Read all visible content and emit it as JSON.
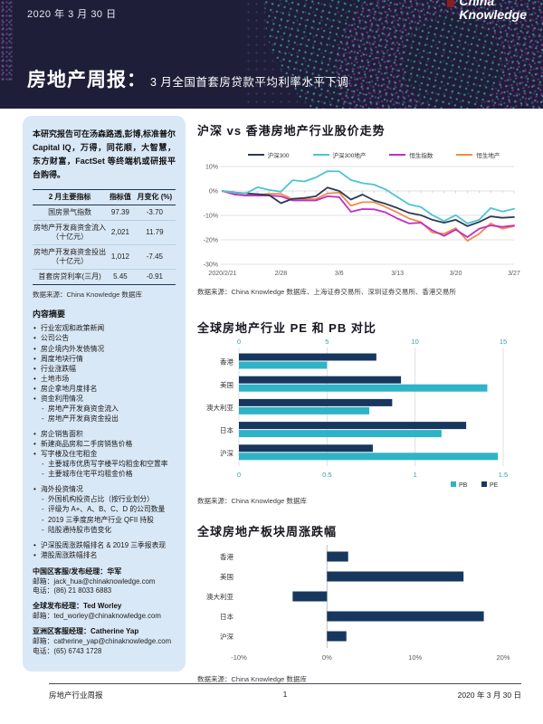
{
  "header": {
    "date": "2020 年 3 月 30 日",
    "logo_line1": "China",
    "logo_line2": "Knowledge",
    "title_bold": "房地产周报：",
    "title_rest": "3 月全国首套房贷款平均利率水平下调"
  },
  "sidebar": {
    "intro": "本研究报告可在汤森路透,彭博,标准普尔 Capital IQ，万得，同花顺，大智慧，东方财富，FactSet 等终端机或研报平台购得。",
    "table": {
      "headers": [
        "2 月主要指标",
        "指标值",
        "月变化 (%)"
      ],
      "rows": [
        [
          "国房景气指数",
          "97.39",
          "-3.70"
        ],
        [
          "房地产开发商资金流入（十亿元）",
          "2,021",
          "11.79"
        ],
        [
          "房地产开发商资金投出（十亿元）",
          "1,012",
          "-7.45"
        ],
        [
          "首套房贷利率(三月)",
          "5.45",
          "-0.91"
        ]
      ],
      "source": "数据来源：China Knowledge 数据库"
    },
    "toc_title": "内容摘要",
    "toc": [
      {
        "text": "行业宏观和政策新闻"
      },
      {
        "text": "公司公告"
      },
      {
        "text": "房企境内外发债情况"
      },
      {
        "text": "周度地块行情"
      },
      {
        "text": "行业涨跌幅"
      },
      {
        "text": "土地市场"
      },
      {
        "text": "房企拿地月度排名"
      },
      {
        "text": "资金利用情况",
        "sub": [
          "房地产开发商资金流入",
          "房地产开发商资金投出"
        ]
      },
      {
        "text": "房企销售面积",
        "gap": true
      },
      {
        "text": "新建商品房和二手房销售价格"
      },
      {
        "text": "写字楼及住宅租金",
        "sub": [
          "主要城市优质写字楼平均租金和空置率",
          "主要城市住宅平均租金价格"
        ]
      },
      {
        "text": "海外投资情况",
        "gap": true,
        "sub": [
          "外国机构投资占比（按行业划分）",
          "评级为 A+、A、B、C、D 的公司数量",
          "2019 三季度房地产行业 QFII 持股",
          "陆股通持股市值变化"
        ]
      },
      {
        "text": "沪深股周涨跌幅排名 & 2019 三季报表现",
        "gap": true
      },
      {
        "text": "港股周涨跌幅排名"
      }
    ],
    "contacts": [
      {
        "title": "中国区客服/发布经理：华军",
        "lines": [
          "邮箱：jack_hua@chinaknowledge.com",
          "电话：(86) 21 8033 6883"
        ]
      },
      {
        "title": "全球发布经理：Ted Worley",
        "lines": [
          "邮箱：ted_worley@chinaknowledge.com"
        ]
      },
      {
        "title": "亚洲区客服经理：Catherine Yap",
        "lines": [
          "邮箱：catherine_yap@chinaknowledge.com",
          "电话：(65) 6743 1728"
        ]
      }
    ]
  },
  "chart_data": [
    {
      "type": "line",
      "title": "沪深 vs 香港房地产行业股价走势",
      "source": "数据来源：China Knowledge 数据库、上海证券交易所、深圳证券交易所、香港交易所",
      "n_points": 26,
      "ylim": [
        -30,
        10
      ],
      "y_ticks": [
        "10%",
        "0%",
        "-10%",
        "-20%",
        "-30%"
      ],
      "y_tick_values": [
        10,
        0,
        -10,
        -20,
        -30
      ],
      "x_tick_labels": [
        "2020/2/21",
        "2/28",
        "3/6",
        "3/13",
        "3/20",
        "3/27"
      ],
      "x_tick_positions": [
        0,
        5,
        10,
        15,
        20,
        25
      ],
      "grid": true,
      "legend_position": "top",
      "series": [
        {
          "name": "沪深300",
          "color": "#2d3a55",
          "values": [
            0,
            -0.6,
            -1.0,
            -1.3,
            -1.7,
            -5.0,
            -3.2,
            -2.9,
            -2.2,
            1.4,
            0.0,
            -3.5,
            -1.5,
            -3.9,
            -5.3,
            -7.0,
            -9.0,
            -9.9,
            -11.8,
            -13.0,
            -11.8,
            -14.4,
            -12.7,
            -10.4,
            -11.0,
            -10.7
          ]
        },
        {
          "name": "沪深300地产",
          "color": "#4cc5d4",
          "values": [
            0,
            -0.7,
            -1.0,
            1.5,
            0.4,
            -0.3,
            4.4,
            3.9,
            5.5,
            8.1,
            8.0,
            4.5,
            3.2,
            2.6,
            0.6,
            -2.5,
            -5.5,
            -6.6,
            -9.9,
            -12.3,
            -9.9,
            -13.3,
            -11.8,
            -7.0,
            -8.4,
            -7.3
          ]
        },
        {
          "name": "恒生指数",
          "color": "#c32cc3",
          "values": [
            0,
            -1.4,
            -1.9,
            -1.9,
            -1.9,
            -2.2,
            -3.9,
            -3.9,
            -3.9,
            -2.2,
            -2.5,
            -8.5,
            -7.4,
            -7.5,
            -8.8,
            -11.3,
            -13.3,
            -13.0,
            -16.1,
            -18.4,
            -15.8,
            -18.9,
            -15.5,
            -14.1,
            -14.7,
            -14.1
          ]
        },
        {
          "name": "恒生地产",
          "color": "#f08a4b",
          "values": [
            0,
            -1.4,
            -1.8,
            -1.6,
            -1.2,
            -1.2,
            -3.4,
            -3.4,
            -3.3,
            -1.0,
            -0.7,
            -6.0,
            -4.6,
            -4.6,
            -6.6,
            -8.8,
            -11.3,
            -12.7,
            -17.0,
            -17.5,
            -15.2,
            -20.4,
            -17.5,
            -13.3,
            -15.5,
            -14.4
          ]
        }
      ]
    },
    {
      "type": "bar",
      "orientation": "horizontal",
      "title": "全球房地产行业 PE 和 PB 对比",
      "source": "数据来源：China Knowledge 数据库",
      "categories": [
        "香港",
        "美国",
        "澳大利亚",
        "日本",
        "沪深"
      ],
      "series": [
        {
          "name": "PE",
          "axis": "top",
          "color": "#17375e",
          "scale_max": 15,
          "values": [
            7.8,
            9.2,
            8.7,
            12.9,
            7.6
          ]
        },
        {
          "name": "PB",
          "axis": "bottom",
          "color": "#2fb3c6",
          "scale_max": 1.5,
          "values": [
            0.5,
            1.41,
            0.74,
            1.15,
            1.47
          ]
        }
      ],
      "top_axis_ticks": [
        "0",
        "5",
        "10",
        "15"
      ],
      "top_axis_values": [
        0,
        5,
        10,
        15
      ],
      "bottom_axis_ticks": [
        "0",
        "0.5",
        "1",
        "1.5"
      ],
      "legend": [
        "PB",
        "PE"
      ],
      "legend_position": "bottom-right",
      "axis_label_color": "#2e9fb3",
      "grid": true
    },
    {
      "type": "bar",
      "orientation": "horizontal",
      "title": "全球房地产板块周涨跌幅",
      "source": "数据来源：China Knowledge 数据库",
      "categories": [
        "香港",
        "美国",
        "澳大利亚",
        "日本",
        "沪深"
      ],
      "values": [
        2.4,
        15.5,
        -3.9,
        17.8,
        2.2
      ],
      "xlim": [
        -10,
        20
      ],
      "x_ticks": [
        "-10%",
        "0%",
        "10%",
        "20%"
      ],
      "x_tick_values": [
        -10,
        0,
        10,
        20
      ],
      "bar_color": "#17375e",
      "grid": false
    }
  ],
  "footer": {
    "left": "房地产行业周报",
    "page": "1",
    "right": "2020 年 3 月 30 日"
  },
  "colors": {
    "header_bg": "#1e1e38",
    "sidebar_bg": "#d9e8f6",
    "accent_teal": "#48d6d0",
    "accent_magenta": "#c83cc8",
    "bar_navy": "#17375e",
    "bar_cyan": "#2fb3c6",
    "axis_teal": "#2e9fb3",
    "axis_gray": "#595959"
  }
}
